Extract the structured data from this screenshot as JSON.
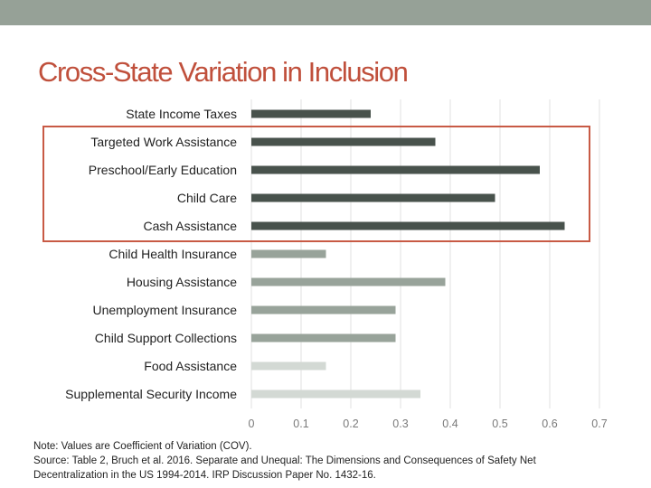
{
  "slide": {
    "title": "Cross-State Variation in Inclusion",
    "note_lines": [
      "Note: Values are Coefficient of Variation (COV).",
      "Source: Table 2, Bruch et al. 2016. Separate and Unequal: The Dimensions and Consequences of Safety Net",
      "Decentralization in the US 1994-2014. IRP Discussion Paper No. 1432-16."
    ]
  },
  "colors": {
    "title": "#c0503c",
    "highlight_border": "#c85a45",
    "top_band": "#96a197",
    "bar_dark": "#48524c",
    "bar_mid": "#98a39a",
    "bar_light": "#d3d9d4",
    "grid": "#e2e2e2"
  },
  "chart_data": {
    "type": "bar",
    "orientation": "horizontal",
    "categories": [
      "State Income Taxes",
      "Targeted Work Assistance",
      "Preschool/Early Education",
      "Child Care",
      "Cash Assistance",
      "Child Health Insurance",
      "Housing Assistance",
      "Unemployment Insurance",
      "Child Support Collections",
      "Food Assistance",
      "Supplemental Security Income"
    ],
    "values": [
      0.24,
      0.37,
      0.58,
      0.49,
      0.63,
      0.15,
      0.39,
      0.29,
      0.29,
      0.15,
      0.34
    ],
    "bar_shades": [
      "dark",
      "dark",
      "dark",
      "dark",
      "dark",
      "mid",
      "mid",
      "mid",
      "mid",
      "light",
      "light"
    ],
    "xlim": [
      0,
      0.7
    ],
    "xticks": [
      "0",
      "0.1",
      "0.2",
      "0.3",
      "0.4",
      "0.5",
      "0.6",
      "0.7"
    ],
    "grid": true,
    "highlighted_categories": [
      "Targeted Work Assistance",
      "Preschool/Early Education",
      "Child Care",
      "Cash Assistance"
    ],
    "xlabel": "",
    "ylabel": ""
  }
}
